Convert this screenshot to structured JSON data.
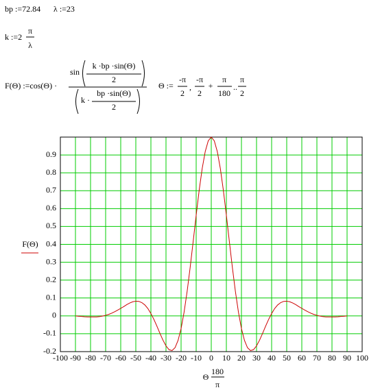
{
  "equations": {
    "bp": "bp :=72.84",
    "lambda": "λ :=23",
    "k": {
      "lhs": "k :=2",
      "num": "π",
      "den": "λ"
    },
    "f": {
      "lhs": "F(Θ) :=cos(Θ) ·",
      "sin": "sin",
      "arg_num": "k ·bp  ·sin(Θ)",
      "arg_den": "2",
      "den_lhs": "k ·",
      "den_num": "bp  ·sin(Θ)",
      "den_den": "2"
    },
    "theta": {
      "lhs": "Θ :=",
      "start_num": "-π",
      "start_den": "2",
      "comma": ",",
      "second_num": "-π",
      "second_den": "2",
      "plus": "+",
      "step_num": "π",
      "step_den": "180",
      "range": "..",
      "end_num": "π",
      "end_den": "2"
    }
  },
  "chart_data": {
    "type": "line",
    "y_label": "F(Θ)",
    "x_label": {
      "prefix": "Θ",
      "num": "180",
      "den": "π"
    },
    "x": [
      -90,
      -88,
      -86,
      -84,
      -82,
      -80,
      -78,
      -76,
      -74,
      -72,
      -70,
      -68,
      -66,
      -64,
      -62,
      -60,
      -58,
      -56,
      -54,
      -52,
      -50,
      -48,
      -46,
      -44,
      -42,
      -40,
      -38,
      -36,
      -34,
      -32,
      -30,
      -28,
      -26,
      -24,
      -22,
      -20,
      -18,
      -16,
      -14,
      -12,
      -10,
      -8,
      -6,
      -4,
      -2,
      0,
      2,
      4,
      6,
      8,
      10,
      12,
      14,
      16,
      18,
      20,
      22,
      24,
      26,
      28,
      30,
      32,
      34,
      36,
      38,
      40,
      42,
      44,
      46,
      48,
      50,
      52,
      54,
      56,
      58,
      60,
      62,
      64,
      66,
      68,
      70,
      72,
      74,
      76,
      78,
      80,
      82,
      84,
      86,
      88,
      90
    ],
    "series": [
      {
        "color": "#cc0000",
        "values": [
          0,
          -0.002,
          -0.003,
          -0.005,
          -0.006,
          -0.006,
          -0.006,
          -0.006,
          -0.004,
          -0.001,
          0.003,
          0.008,
          0.015,
          0.023,
          0.032,
          0.042,
          0.052,
          0.063,
          0.072,
          0.079,
          0.082,
          0.081,
          0.074,
          0.061,
          0.041,
          0.013,
          -0.02,
          -0.058,
          -0.098,
          -0.136,
          -0.168,
          -0.189,
          -0.194,
          -0.178,
          -0.137,
          -0.071,
          0.021,
          0.136,
          0.27,
          0.415,
          0.563,
          0.703,
          0.825,
          0.919,
          0.979,
          1,
          0.979,
          0.919,
          0.825,
          0.703,
          0.563,
          0.415,
          0.27,
          0.136,
          0.021,
          -0.071,
          -0.137,
          -0.178,
          -0.194,
          -0.189,
          -0.168,
          -0.136,
          -0.098,
          -0.058,
          -0.02,
          0.013,
          0.041,
          0.061,
          0.074,
          0.081,
          0.082,
          0.079,
          0.072,
          0.063,
          0.052,
          0.042,
          0.032,
          0.023,
          0.015,
          0.008,
          0.003,
          -0.001,
          -0.004,
          -0.006,
          -0.006,
          -0.006,
          -0.006,
          -0.005,
          -0.003,
          -0.002,
          0
        ]
      }
    ],
    "xlim": [
      -100,
      100
    ],
    "xticks": [
      -100,
      -90,
      -80,
      -70,
      -60,
      -50,
      -40,
      -30,
      -20,
      -10,
      0,
      10,
      20,
      30,
      40,
      50,
      60,
      70,
      80,
      90,
      100
    ],
    "ylim": [
      -0.2,
      1
    ],
    "yticks": [
      -0.2,
      -0.1,
      0,
      0.1,
      0.2,
      0.3,
      0.4,
      0.5,
      0.6,
      0.7,
      0.8,
      0.9
    ],
    "grid": true,
    "grid_color": "#00cc00"
  }
}
